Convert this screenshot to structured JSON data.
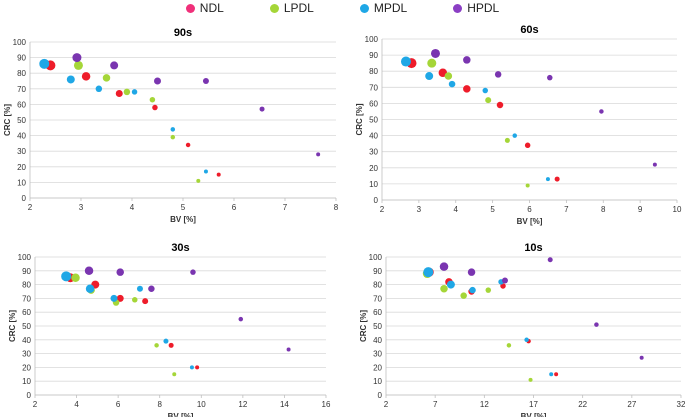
{
  "legend": [
    {
      "label": "NDL",
      "color": "#f0307a"
    },
    {
      "label": "LPDL",
      "color": "#a5d638"
    },
    {
      "label": "MPDL",
      "color": "#1fa7e6"
    },
    {
      "label": "HPDL",
      "color": "#8b3fc4"
    }
  ],
  "chart_data": [
    {
      "type": "scatter",
      "title": "90s",
      "xlabel": "BV [%]",
      "ylabel": "CRC [%]",
      "xlim": [
        2,
        8
      ],
      "ylim": [
        0,
        100
      ],
      "xticks": [
        2,
        3,
        4,
        5,
        6,
        7,
        8
      ],
      "yticks": [
        0,
        10,
        20,
        30,
        40,
        50,
        60,
        70,
        80,
        90,
        100
      ],
      "grid": true,
      "series": [
        {
          "name": "NDL",
          "color": "#ee1c2a",
          "points": [
            [
              2.4,
              85,
              9
            ],
            [
              3.1,
              78,
              7.5
            ],
            [
              3.75,
              67,
              6
            ],
            [
              4.45,
              58,
              4.5
            ],
            [
              5.1,
              34,
              3.5
            ],
            [
              5.7,
              15,
              3
            ]
          ]
        },
        {
          "name": "LPDL",
          "color": "#a5d638",
          "points": [
            [
              2.95,
              85,
              8
            ],
            [
              3.5,
              77,
              6.5
            ],
            [
              3.9,
              68,
              5.5
            ],
            [
              4.4,
              63,
              4.5
            ],
            [
              4.8,
              39,
              3.5
            ],
            [
              5.3,
              11,
              3
            ]
          ]
        },
        {
          "name": "MPDL",
          "color": "#1fa7e6",
          "points": [
            [
              2.28,
              86,
              9
            ],
            [
              2.8,
              76,
              7
            ],
            [
              3.35,
              70,
              5.5
            ],
            [
              4.05,
              68,
              4.5
            ],
            [
              4.8,
              44,
              3.5
            ],
            [
              5.45,
              17,
              3
            ]
          ]
        },
        {
          "name": "HPDL",
          "color": "#7a35b0",
          "points": [
            [
              2.92,
              90,
              8
            ],
            [
              3.65,
              85,
              7
            ],
            [
              4.5,
              75,
              6
            ],
            [
              5.45,
              75,
              5
            ],
            [
              6.55,
              57,
              4
            ],
            [
              7.65,
              28,
              3
            ]
          ]
        }
      ]
    },
    {
      "type": "scatter",
      "title": "60s",
      "xlabel": "BV [%]",
      "ylabel": "CRC [%]",
      "xlim": [
        2,
        10
      ],
      "ylim": [
        0,
        100
      ],
      "xticks": [
        2,
        3,
        4,
        5,
        6,
        7,
        8,
        9,
        10
      ],
      "yticks": [
        0,
        10,
        20,
        30,
        40,
        50,
        60,
        70,
        80,
        90,
        100
      ],
      "grid": true,
      "series": [
        {
          "name": "NDL",
          "color": "#ee1c2a",
          "points": [
            [
              2.8,
              85,
              9
            ],
            [
              3.65,
              79,
              7.5
            ],
            [
              4.3,
              69,
              6.5
            ],
            [
              5.2,
              59,
              5.5
            ],
            [
              5.95,
              34,
              4.5
            ],
            [
              6.75,
              13,
              4
            ]
          ]
        },
        {
          "name": "LPDL",
          "color": "#a5d638",
          "points": [
            [
              3.35,
              85,
              8
            ],
            [
              3.8,
              77,
              6.5
            ],
            [
              4.88,
              62,
              5
            ],
            [
              5.4,
              37,
              4
            ],
            [
              5.95,
              9,
              3
            ]
          ]
        },
        {
          "name": "MPDL",
          "color": "#1fa7e6",
          "points": [
            [
              2.65,
              86,
              9
            ],
            [
              3.28,
              77,
              7
            ],
            [
              3.9,
              72,
              5.5
            ],
            [
              4.8,
              68,
              4.5
            ],
            [
              5.6,
              40,
              3.5
            ],
            [
              6.5,
              13,
              3
            ]
          ]
        },
        {
          "name": "HPDL",
          "color": "#7a35b0",
          "points": [
            [
              3.45,
              91,
              8
            ],
            [
              4.3,
              87,
              6.5
            ],
            [
              5.15,
              78,
              5.5
            ],
            [
              6.55,
              76,
              4.5
            ],
            [
              7.95,
              55,
              3.5
            ],
            [
              9.4,
              22,
              3
            ]
          ]
        }
      ]
    },
    {
      "type": "scatter",
      "title": "30s",
      "xlabel": "BV [%]",
      "ylabel": "CRC [%]",
      "xlim": [
        2,
        16
      ],
      "ylim": [
        0,
        100
      ],
      "xticks": [
        2,
        4,
        6,
        8,
        10,
        12,
        14,
        16
      ],
      "yticks": [
        0,
        10,
        20,
        30,
        40,
        50,
        60,
        70,
        80,
        90,
        100
      ],
      "grid": true,
      "series": [
        {
          "name": "NDL",
          "color": "#ee1c2a",
          "points": [
            [
              3.7,
              85,
              8
            ],
            [
              4.9,
              80,
              7
            ],
            [
              6.1,
              70,
              6
            ],
            [
              7.3,
              68,
              5
            ],
            [
              8.55,
              36,
              4
            ],
            [
              9.8,
              20,
              3
            ]
          ]
        },
        {
          "name": "LPDL",
          "color": "#a5d638",
          "points": [
            [
              3.95,
              85,
              7.5
            ],
            [
              4.7,
              76,
              6.5
            ],
            [
              5.9,
              67,
              5.5
            ],
            [
              6.8,
              69,
              4.5
            ],
            [
              7.85,
              36,
              3.5
            ],
            [
              8.7,
              15,
              3
            ]
          ]
        },
        {
          "name": "MPDL",
          "color": "#1fa7e6",
          "points": [
            [
              3.5,
              86,
              9
            ],
            [
              4.65,
              77,
              7.5
            ],
            [
              5.8,
              70,
              6
            ],
            [
              7.05,
              77,
              5
            ],
            [
              8.3,
              39,
              4
            ],
            [
              9.55,
              20,
              3
            ]
          ]
        },
        {
          "name": "HPDL",
          "color": "#7a35b0",
          "points": [
            [
              4.6,
              90,
              7.5
            ],
            [
              6.1,
              89,
              6.5
            ],
            [
              7.6,
              77,
              5.5
            ],
            [
              9.6,
              89,
              4.5
            ],
            [
              11.9,
              55,
              3.5
            ],
            [
              14.2,
              33,
              3
            ]
          ]
        }
      ]
    },
    {
      "type": "scatter",
      "title": "10s",
      "xlabel": "BV [%]",
      "ylabel": "CRC [%]",
      "xlim": [
        2,
        32
      ],
      "ylim": [
        0,
        100
      ],
      "xticks": [
        2,
        7,
        12,
        17,
        22,
        27,
        32
      ],
      "yticks": [
        0,
        10,
        20,
        30,
        40,
        50,
        60,
        70,
        80,
        90,
        100
      ],
      "grid": true,
      "series": [
        {
          "name": "NDL",
          "color": "#ee1c2a",
          "points": [
            [
              6.4,
              89,
              8
            ],
            [
              8.4,
              82,
              6.5
            ],
            [
              10.7,
              75,
              5.5
            ],
            [
              13.9,
              79,
              4.5
            ],
            [
              16.5,
              39,
              3.5
            ],
            [
              19.3,
              15,
              3
            ]
          ]
        },
        {
          "name": "LPDL",
          "color": "#a5d638",
          "points": [
            [
              6.2,
              88,
              8
            ],
            [
              7.9,
              77,
              6.5
            ],
            [
              9.9,
              72,
              5.5
            ],
            [
              12.4,
              76,
              4.5
            ],
            [
              14.5,
              36,
              3.5
            ],
            [
              16.7,
              11,
              3
            ]
          ]
        },
        {
          "name": "MPDL",
          "color": "#1fa7e6",
          "points": [
            [
              6.3,
              89,
              9
            ],
            [
              8.6,
              80,
              7
            ],
            [
              10.8,
              76,
              5.5
            ],
            [
              13.7,
              82,
              4.5
            ],
            [
              16.3,
              40,
              3.5
            ],
            [
              18.8,
              15,
              3
            ]
          ]
        },
        {
          "name": "HPDL",
          "color": "#7a35b0",
          "points": [
            [
              7.9,
              93,
              7.5
            ],
            [
              10.7,
              89,
              6.5
            ],
            [
              14.1,
              83,
              5
            ],
            [
              18.7,
              98,
              4
            ],
            [
              23.4,
              51,
              3.5
            ],
            [
              28.0,
              27,
              3
            ]
          ]
        }
      ]
    }
  ]
}
